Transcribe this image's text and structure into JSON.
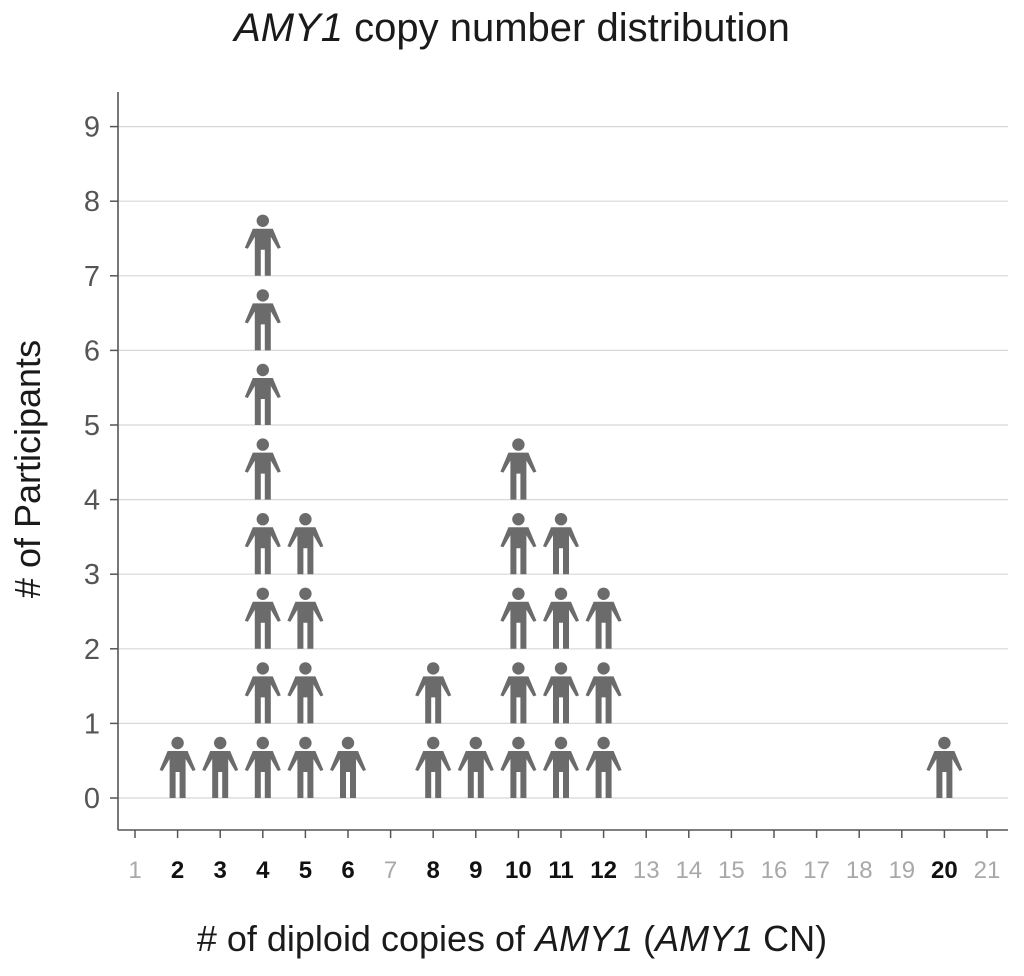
{
  "chart_data": {
    "type": "pictogram",
    "title_prefix": "AMY1",
    "title_suffix": " copy number distribution",
    "xlabel_prefix": "# of diploid copies of ",
    "xlabel_gene1": "AMY1",
    "xlabel_mid": " (",
    "xlabel_gene2": "AMY1",
    "xlabel_suffix": " CN)",
    "ylabel": "# of Participants",
    "x_ticks": [
      "1",
      "2",
      "3",
      "4",
      "5",
      "6",
      "7",
      "8",
      "9",
      "10",
      "11",
      "12",
      "13",
      "14",
      "15",
      "16",
      "17",
      "18",
      "19",
      "20",
      "21"
    ],
    "y_ticks": [
      "0",
      "1",
      "2",
      "3",
      "4",
      "5",
      "6",
      "7",
      "8",
      "9"
    ],
    "ylim": [
      0,
      9
    ],
    "xlim": [
      1,
      21
    ],
    "grid": true,
    "data": [
      {
        "x": 2,
        "count": 1
      },
      {
        "x": 3,
        "count": 1
      },
      {
        "x": 4,
        "count": 8
      },
      {
        "x": 5,
        "count": 4
      },
      {
        "x": 6,
        "count": 1
      },
      {
        "x": 8,
        "count": 2
      },
      {
        "x": 9,
        "count": 1
      },
      {
        "x": 10,
        "count": 5
      },
      {
        "x": 11,
        "count": 4
      },
      {
        "x": 12,
        "count": 3
      },
      {
        "x": 20,
        "count": 1
      }
    ],
    "colors": {
      "icon": "#6b6b6b",
      "grid": "#d8d8d8",
      "axis": "#555555",
      "tick_label_present": "#111111",
      "tick_label_absent": "#a8a8a8"
    }
  }
}
